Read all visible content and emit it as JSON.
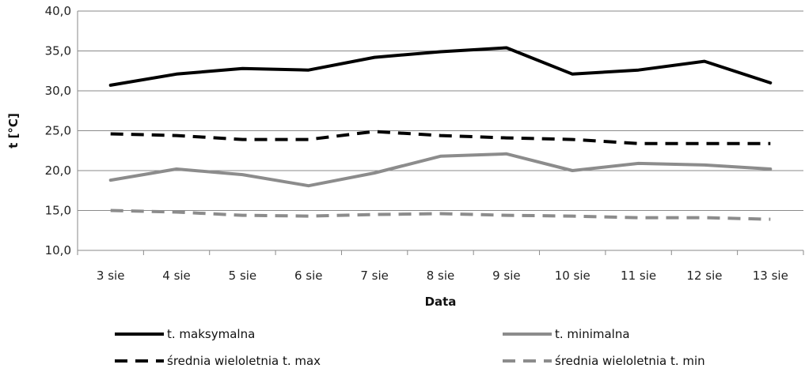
{
  "chart_data": {
    "type": "line",
    "title": "",
    "xlabel": "Data",
    "ylabel": "t [°C]",
    "categories": [
      "3 sie",
      "4 sie",
      "5 sie",
      "6 sie",
      "7 sie",
      "8 sie",
      "9 sie",
      "10 sie",
      "11 sie",
      "12 sie",
      "13 sie"
    ],
    "ylim": [
      10,
      40
    ],
    "yticks": [
      "10,0",
      "15,0",
      "20,0",
      "25,0",
      "30,0",
      "35,0",
      "40,0"
    ],
    "grid": true,
    "legend_position": "bottom",
    "series": [
      {
        "name": "t. maksymalna",
        "color": "#000000",
        "style": "solid",
        "values": [
          30.7,
          32.1,
          32.8,
          32.6,
          34.2,
          34.9,
          35.4,
          32.1,
          32.6,
          33.7,
          31.0
        ]
      },
      {
        "name": "t. minimalna",
        "color": "#8c8c8c",
        "style": "solid",
        "values": [
          18.8,
          20.2,
          19.5,
          18.1,
          19.7,
          21.8,
          22.1,
          20.0,
          20.9,
          20.7,
          20.2
        ]
      },
      {
        "name": "średnia wieloletnia t. max",
        "color": "#000000",
        "style": "dashed",
        "values": [
          24.6,
          24.4,
          23.9,
          23.9,
          24.9,
          24.4,
          24.1,
          23.9,
          23.4,
          23.4,
          23.4
        ]
      },
      {
        "name": "średnia wieloletnia t. min",
        "color": "#8c8c8c",
        "style": "dashed",
        "values": [
          15.0,
          14.8,
          14.4,
          14.3,
          14.5,
          14.6,
          14.4,
          14.3,
          14.1,
          14.1,
          13.9
        ]
      }
    ]
  }
}
